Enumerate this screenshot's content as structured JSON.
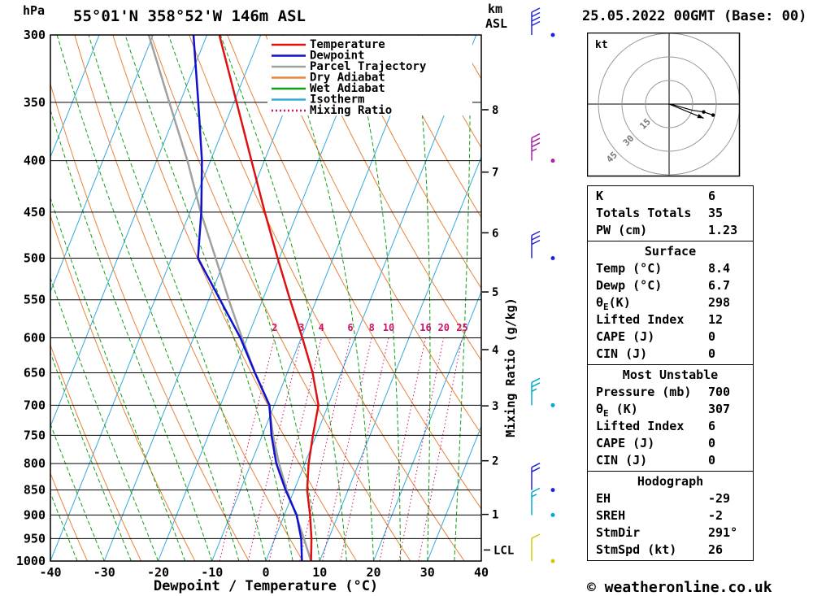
{
  "header": {
    "pressure_unit": "hPa",
    "station_title": "55°01'N 358°52'W 146m ASL",
    "altitude_unit_line1": "km",
    "altitude_unit_line2": "ASL",
    "date_title": "25.05.2022 00GMT (Base: 00)"
  },
  "chart_data": {
    "type": "skewt-log-p",
    "pressure_ticks_hpa": [
      300,
      350,
      400,
      450,
      500,
      550,
      600,
      650,
      700,
      750,
      800,
      850,
      900,
      950,
      1000
    ],
    "temp_ticks_c": [
      -40,
      -30,
      -20,
      -10,
      0,
      10,
      20,
      30,
      40
    ],
    "xlabel": "Dewpoint / Temperature (°C)",
    "ylabel_right": "Mixing Ratio (g/kg)",
    "km_ticks": [
      1,
      2,
      3,
      4,
      5,
      6,
      7,
      8
    ],
    "lcl_label": "LCL",
    "lcl_pressure_hpa": 975,
    "isotherm_step_c": 10,
    "dry_adiabat_step_k": 10,
    "wet_adiabat_step_c": 5,
    "mixing_ratio_values": [
      2,
      3,
      4,
      6,
      8,
      10,
      16,
      20,
      25
    ],
    "temperature_profile_p_t": [
      [
        1000,
        8.4
      ],
      [
        950,
        6.8
      ],
      [
        900,
        4.8
      ],
      [
        850,
        2.4
      ],
      [
        800,
        0.7
      ],
      [
        750,
        -0.6
      ],
      [
        700,
        -1.8
      ],
      [
        650,
        -5.3
      ],
      [
        600,
        -9.8
      ],
      [
        550,
        -14.9
      ],
      [
        500,
        -20.3
      ],
      [
        450,
        -26.1
      ],
      [
        400,
        -32.4
      ],
      [
        350,
        -39.5
      ],
      [
        300,
        -47.7
      ]
    ],
    "dewpoint_profile_p_t": [
      [
        1000,
        6.7
      ],
      [
        950,
        4.9
      ],
      [
        900,
        2.3
      ],
      [
        850,
        -1.6
      ],
      [
        800,
        -5.3
      ],
      [
        750,
        -8.3
      ],
      [
        700,
        -10.9
      ],
      [
        650,
        -16.0
      ],
      [
        600,
        -21.3
      ],
      [
        550,
        -27.9
      ],
      [
        500,
        -35.1
      ],
      [
        450,
        -37.9
      ],
      [
        400,
        -41.6
      ],
      [
        350,
        -46.6
      ],
      [
        300,
        -52.5
      ]
    ],
    "parcel_profile_p_t": [
      [
        1000,
        8.4
      ],
      [
        950,
        5.4
      ],
      [
        900,
        2.2
      ],
      [
        850,
        -1.4
      ],
      [
        800,
        -4.8
      ],
      [
        750,
        -8.0
      ],
      [
        700,
        -11.0
      ],
      [
        650,
        -16.0
      ],
      [
        600,
        -21.0
      ],
      [
        550,
        -26.3
      ],
      [
        500,
        -31.8
      ],
      [
        450,
        -38.0
      ],
      [
        400,
        -44.3
      ],
      [
        350,
        -52.0
      ],
      [
        300,
        -60.8
      ]
    ],
    "wind_barbs": [
      {
        "pressure": 300,
        "speed_kt": 40,
        "color": "#2222dd"
      },
      {
        "pressure": 400,
        "speed_kt": 35,
        "color": "#aa22aa"
      },
      {
        "pressure": 500,
        "speed_kt": 30,
        "color": "#2222dd"
      },
      {
        "pressure": 700,
        "speed_kt": 25,
        "color": "#00aacc"
      },
      {
        "pressure": 850,
        "speed_kt": 20,
        "color": "#2222dd"
      },
      {
        "pressure": 900,
        "speed_kt": 15,
        "color": "#00aacc"
      },
      {
        "pressure": 1000,
        "speed_kt": 10,
        "color": "#cccc00"
      }
    ]
  },
  "legend": {
    "items": [
      {
        "label": "Temperature",
        "color": "#dd1111",
        "style": "solid"
      },
      {
        "label": "Dewpoint",
        "color": "#1111cc",
        "style": "solid"
      },
      {
        "label": "Parcel Trajectory",
        "color": "#a0a0a0",
        "style": "solid"
      },
      {
        "label": "Dry Adiabat",
        "color": "#e8833a",
        "style": "solid"
      },
      {
        "label": "Wet Adiabat",
        "color": "#11a011",
        "style": "solid"
      },
      {
        "label": "Isotherm",
        "color": "#33aadd",
        "style": "solid"
      },
      {
        "label": "Mixing Ratio",
        "color": "#cc1166",
        "style": "dotted"
      }
    ]
  },
  "colors": {
    "temperature": "#dd1111",
    "dewpoint": "#1111cc",
    "parcel": "#a0a0a0",
    "dry_adiabat": "#e8833a",
    "wet_adiabat": "#11a011",
    "isotherm": "#33aadd",
    "mixing_ratio": "#cc1166",
    "grid": "#000000"
  },
  "hodograph": {
    "unit_label": "kt",
    "rings_kt": [
      15,
      30,
      45
    ],
    "trace_kt": [
      [
        1,
        0
      ],
      [
        8,
        2
      ],
      [
        15,
        4
      ],
      [
        22,
        5
      ],
      [
        28,
        7
      ]
    ],
    "dots_kt": [
      [
        22,
        5
      ],
      [
        28,
        7
      ]
    ],
    "storm_vector_kt": [
      22,
      9
    ]
  },
  "tables": [
    {
      "rows": [
        {
          "label": "K",
          "value": "6"
        },
        {
          "label": "Totals Totals",
          "value": "35"
        },
        {
          "label": "PW (cm)",
          "value": "1.23"
        }
      ]
    },
    {
      "header": "Surface",
      "rows": [
        {
          "label": "Temp (°C)",
          "value": "8.4"
        },
        {
          "label": "Dewp (°C)",
          "value": "6.7"
        },
        {
          "label": "θ",
          "sub": "E",
          "rest": "(K)",
          "value": "298"
        },
        {
          "label": "Lifted Index",
          "value": "12"
        },
        {
          "label": "CAPE (J)",
          "value": "0"
        },
        {
          "label": "CIN (J)",
          "value": "0"
        }
      ]
    },
    {
      "header": "Most Unstable",
      "rows": [
        {
          "label": "Pressure (mb)",
          "value": "700"
        },
        {
          "label": "θ",
          "sub": "E",
          "rest": " (K)",
          "value": "307"
        },
        {
          "label": "Lifted Index",
          "value": "6"
        },
        {
          "label": "CAPE (J)",
          "value": "0"
        },
        {
          "label": "CIN (J)",
          "value": "0"
        }
      ]
    },
    {
      "header": "Hodograph",
      "rows": [
        {
          "label": "EH",
          "value": "-29"
        },
        {
          "label": "SREH",
          "value": "-2"
        },
        {
          "label": "StmDir",
          "value": "291°"
        },
        {
          "label": "StmSpd (kt)",
          "value": "26"
        }
      ]
    }
  ],
  "footer": {
    "copyright": "© weatheronline.co.uk"
  }
}
